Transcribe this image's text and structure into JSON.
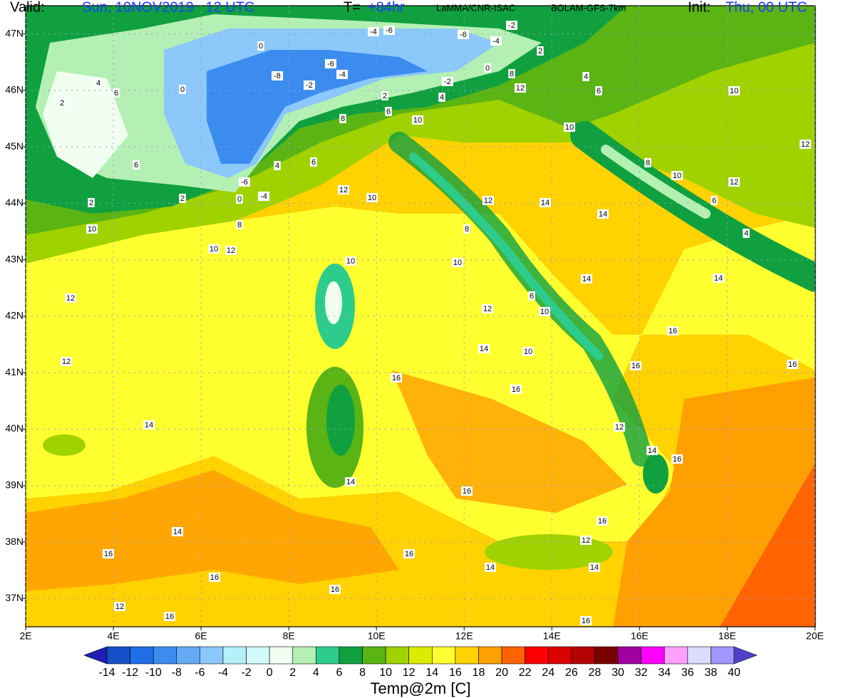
{
  "header": {
    "valid_label": "Valid:",
    "valid_time": "Sun, 10NOV2019   12 UTC",
    "step_label": "T=",
    "step": "+84hr",
    "source": "LaMMA/CNR-ISAC",
    "model": "BOLAM-GFS-7km",
    "init_label": "Init:",
    "init_time": "Thu, 00 UTC"
  },
  "map": {
    "xlim": [
      2,
      20.01
    ],
    "ylim": [
      36.5,
      47.5
    ],
    "xticks": [
      {
        "value": 2,
        "label": "2E"
      },
      {
        "value": 4,
        "label": "4E"
      },
      {
        "value": 6,
        "label": "6E"
      },
      {
        "value": 8,
        "label": "8E"
      },
      {
        "value": 10,
        "label": "10E"
      },
      {
        "value": 12,
        "label": "12E"
      },
      {
        "value": 14,
        "label": "14E"
      },
      {
        "value": 16,
        "label": "16E"
      },
      {
        "value": 18,
        "label": "18E"
      },
      {
        "value": 20,
        "label": "20E"
      }
    ],
    "yticks": [
      {
        "value": 37,
        "label": "37N"
      },
      {
        "value": 38,
        "label": "38N"
      },
      {
        "value": 39,
        "label": "39N"
      },
      {
        "value": 40,
        "label": "40N"
      },
      {
        "value": 41,
        "label": "41N"
      },
      {
        "value": 42,
        "label": "42N"
      },
      {
        "value": 43,
        "label": "43N"
      },
      {
        "value": 44,
        "label": "44N"
      },
      {
        "value": 45,
        "label": "45N"
      },
      {
        "value": 46,
        "label": "46N"
      },
      {
        "value": 47,
        "label": "47N"
      }
    ],
    "grid": true,
    "contour_labels": [
      -6,
      -4,
      -6,
      -2,
      -4,
      2,
      0,
      -8,
      -6,
      -4,
      -2,
      0,
      -2,
      8,
      4,
      6,
      2,
      0,
      2,
      6,
      4,
      12,
      10,
      4,
      6,
      8,
      10,
      10,
      12,
      6,
      6,
      4,
      8,
      10,
      12,
      6,
      -6,
      0,
      2,
      2,
      -4,
      12,
      10,
      12,
      14,
      14,
      8,
      10,
      10,
      12,
      4,
      8,
      10,
      10,
      14,
      14,
      12,
      6,
      10,
      12,
      16,
      14,
      10,
      12,
      16,
      16,
      16,
      16,
      14,
      12,
      14,
      16,
      14,
      16,
      16,
      14,
      12,
      16,
      16,
      14,
      14,
      16,
      16,
      12,
      16,
      16
    ]
  },
  "colorbar": {
    "levels": [
      -14,
      -12,
      -10,
      -8,
      -6,
      -4,
      -2,
      0,
      2,
      4,
      6,
      8,
      10,
      12,
      14,
      16,
      18,
      20,
      22,
      24,
      26,
      28,
      30,
      32,
      34,
      36,
      38,
      40
    ],
    "colors": [
      "#1e1eb4",
      "#1450c8",
      "#1e6ee6",
      "#3c8cf0",
      "#64aaf5",
      "#8cc8fa",
      "#b4f0fa",
      "#d2fafa",
      "#f0fff0",
      "#b4f0b4",
      "#2ecc8c",
      "#10a040",
      "#5ab414",
      "#a0d200",
      "#dcec00",
      "#ffff30",
      "#ffd200",
      "#ffa000",
      "#ff6400",
      "#ff0000",
      "#dc0000",
      "#b40000",
      "#780000",
      "#a000a0",
      "#ff00ff",
      "#ffa0ff",
      "#dcdcff",
      "#a096ff",
      "#5040c8"
    ],
    "title": "Temp@2m [C]"
  }
}
